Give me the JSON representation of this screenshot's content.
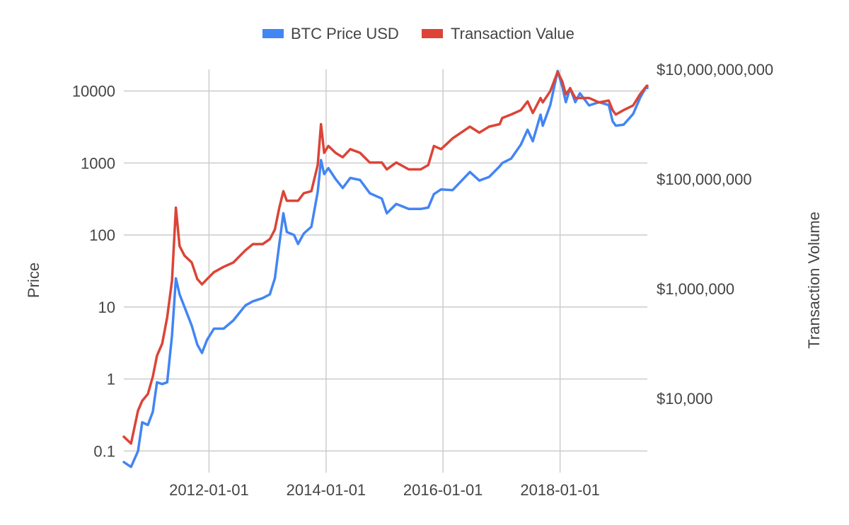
{
  "chart_data": {
    "type": "line",
    "legend": {
      "position": "top",
      "entries": [
        "BTC Price USD",
        "Transaction Value"
      ]
    },
    "colors": {
      "btc_price": "#4285f4",
      "transaction_value": "#db4437",
      "grid": "#cccccc"
    },
    "x_axis": {
      "type": "date",
      "range": [
        "2010-07-18",
        "2019-06-30"
      ],
      "ticks": [
        "2012-01-01",
        "2014-01-01",
        "2016-01-01",
        "2018-01-01"
      ],
      "grid": true
    },
    "y_axis_left": {
      "label": "Price",
      "scale": "log",
      "range": [
        0.05,
        20000
      ],
      "ticks": [
        0.1,
        1,
        10,
        100,
        1000,
        10000
      ],
      "tick_labels": [
        "0.1",
        "1",
        "10",
        "100",
        "1000",
        "10000"
      ],
      "grid": true
    },
    "y_axis_right": {
      "label": "Transaction Volume",
      "scale": "log",
      "ticks": [
        10000,
        1000000,
        100000000,
        10000000000
      ],
      "tick_labels": [
        "$10,000",
        "$1,000,000",
        "$100,000,000",
        "$10,000,000,000"
      ]
    },
    "series": [
      {
        "name": "BTC Price USD",
        "axis": "left",
        "x": [
          "2010-07-18",
          "2010-09-01",
          "2010-10-15",
          "2010-11-10",
          "2010-12-15",
          "2011-01-15",
          "2011-02-10",
          "2011-03-15",
          "2011-04-15",
          "2011-05-15",
          "2011-06-08",
          "2011-07-01",
          "2011-08-01",
          "2011-09-15",
          "2011-10-20",
          "2011-11-18",
          "2011-12-20",
          "2012-02-01",
          "2012-04-01",
          "2012-06-01",
          "2012-08-15",
          "2012-10-01",
          "2012-12-01",
          "2013-01-15",
          "2013-02-15",
          "2013-03-15",
          "2013-04-09",
          "2013-05-01",
          "2013-06-15",
          "2013-07-10",
          "2013-08-15",
          "2013-10-01",
          "2013-11-10",
          "2013-11-30",
          "2013-12-20",
          "2014-01-15",
          "2014-03-01",
          "2014-04-15",
          "2014-06-01",
          "2014-08-01",
          "2014-10-01",
          "2014-12-15",
          "2015-01-15",
          "2015-03-15",
          "2015-06-01",
          "2015-08-15",
          "2015-10-01",
          "2015-11-05",
          "2015-12-20",
          "2016-03-01",
          "2016-06-17",
          "2016-08-15",
          "2016-10-15",
          "2016-12-20",
          "2017-01-05",
          "2017-03-01",
          "2017-05-01",
          "2017-06-12",
          "2017-07-15",
          "2017-09-01",
          "2017-09-15",
          "2017-11-01",
          "2017-12-17",
          "2018-01-15",
          "2018-02-06",
          "2018-03-05",
          "2018-04-06",
          "2018-05-05",
          "2018-07-01",
          "2018-09-01",
          "2018-11-01",
          "2018-11-25",
          "2018-12-15",
          "2019-02-01",
          "2019-04-02",
          "2019-05-15",
          "2019-06-26",
          "2019-06-30"
        ],
        "values": [
          0.07,
          0.06,
          0.1,
          0.25,
          0.23,
          0.35,
          0.9,
          0.85,
          0.9,
          4,
          25,
          15,
          10,
          5.5,
          3,
          2.3,
          3.5,
          5,
          5,
          6.5,
          10.5,
          12,
          13.3,
          15,
          25,
          75,
          200,
          110,
          100,
          75,
          105,
          130,
          400,
          1100,
          700,
          850,
          600,
          450,
          620,
          580,
          380,
          320,
          200,
          270,
          230,
          230,
          240,
          370,
          430,
          420,
          750,
          570,
          640,
          900,
          1000,
          1150,
          1800,
          2900,
          2000,
          4700,
          3300,
          6400,
          19000,
          11500,
          7000,
          11000,
          7000,
          9300,
          6300,
          7000,
          6400,
          3800,
          3300,
          3400,
          4800,
          8000,
          11800,
          11000
        ]
      },
      {
        "name": "Transaction Value",
        "axis": "right",
        "x": [
          "2010-07-18",
          "2010-09-01",
          "2010-10-15",
          "2010-11-10",
          "2010-12-15",
          "2011-01-15",
          "2011-02-10",
          "2011-03-15",
          "2011-04-15",
          "2011-05-15",
          "2011-06-08",
          "2011-07-01",
          "2011-08-01",
          "2011-09-15",
          "2011-10-20",
          "2011-11-18",
          "2011-12-20",
          "2012-02-01",
          "2012-04-01",
          "2012-06-01",
          "2012-08-15",
          "2012-10-01",
          "2012-12-01",
          "2013-01-15",
          "2013-02-15",
          "2013-03-15",
          "2013-04-09",
          "2013-05-01",
          "2013-06-15",
          "2013-07-10",
          "2013-08-15",
          "2013-10-01",
          "2013-11-10",
          "2013-11-30",
          "2013-12-20",
          "2014-01-15",
          "2014-03-01",
          "2014-04-15",
          "2014-06-01",
          "2014-08-01",
          "2014-10-01",
          "2014-12-15",
          "2015-01-15",
          "2015-03-15",
          "2015-06-01",
          "2015-08-15",
          "2015-10-01",
          "2015-11-05",
          "2015-12-20",
          "2016-03-01",
          "2016-06-17",
          "2016-08-15",
          "2016-10-15",
          "2016-12-20",
          "2017-01-05",
          "2017-03-01",
          "2017-05-01",
          "2017-06-12",
          "2017-07-15",
          "2017-09-01",
          "2017-09-15",
          "2017-11-01",
          "2017-12-17",
          "2018-01-15",
          "2018-02-06",
          "2018-03-05",
          "2018-04-06",
          "2018-05-05",
          "2018-07-01",
          "2018-09-01",
          "2018-11-01",
          "2018-11-25",
          "2018-12-15",
          "2019-02-01",
          "2019-04-02",
          "2019-05-15",
          "2019-06-26",
          "2019-06-30"
        ],
        "values": [
          2000,
          1500,
          6000,
          9000,
          12000,
          25000,
          60000,
          100000,
          300000,
          1400000,
          30000000,
          6000000,
          4000000,
          3000000,
          1500000,
          1200000,
          1500000,
          2000000,
          2500000,
          3000000,
          5000000,
          6500000,
          6500000,
          8000000,
          12000000,
          30000000,
          60000000,
          40000000,
          40000000,
          40000000,
          55000000,
          60000000,
          180000000,
          1000000000,
          300000000,
          400000000,
          300000000,
          250000000,
          350000000,
          300000000,
          200000000,
          200000000,
          150000000,
          200000000,
          150000000,
          150000000,
          180000000,
          400000000,
          350000000,
          550000000,
          900000000,
          700000000,
          900000000,
          1000000000,
          1300000000,
          1500000000,
          1800000000,
          2600000000,
          1600000000,
          3000000000,
          2500000000,
          4000000000,
          9000000000,
          6000000000,
          3500000000,
          4500000000,
          3000000000,
          3000000000,
          3000000000,
          2500000000,
          2700000000,
          1800000000,
          1500000000,
          1800000000,
          2200000000,
          3500000000,
          5000000000,
          5000000000
        ]
      }
    ]
  }
}
